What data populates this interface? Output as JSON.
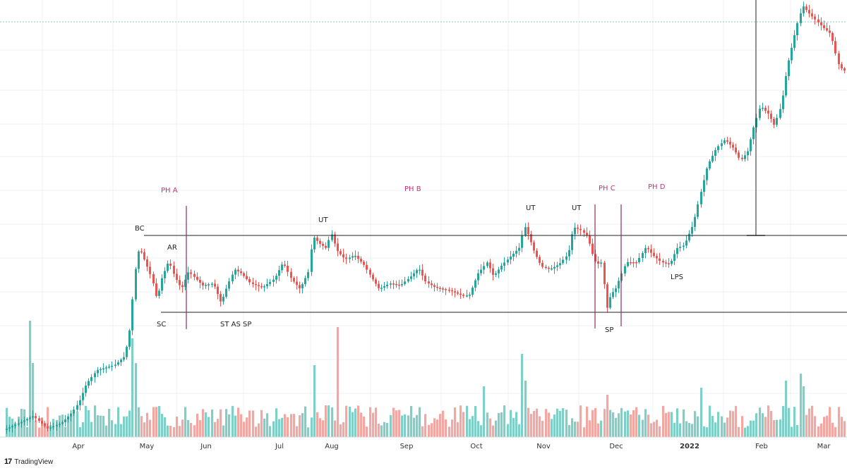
{
  "chart_data": {
    "type": "candlestick",
    "x_axis": {
      "tick_labels": [
        "Apr",
        "May",
        "Jun",
        "Jul",
        "Aug",
        "Sep",
        "Oct",
        "Nov",
        "Dec",
        "2022",
        "Feb",
        "Mar"
      ],
      "bold_labels": [
        "2022"
      ]
    },
    "colors": {
      "up": "#26a69a",
      "down": "#ef5350",
      "up_volume": "#7fcfc6",
      "down_volume": "#f3a7a3",
      "phase_line": "#8e2f5c",
      "phase_text": "#c2357a",
      "grid": "#eef0f3",
      "dotted_level": "#7fc8d6"
    },
    "annotations": [
      "BC",
      "AR",
      "SC",
      "ST AS SP",
      "UT",
      "UT",
      "UT",
      "SP",
      "LPS"
    ],
    "phases": [
      "PH A",
      "PH B",
      "PH C",
      "PH D"
    ],
    "trading_range": {
      "resistance": "horizontal line at top of range",
      "support": "horizontal line at bottom of range"
    }
  },
  "branding": {
    "logo": "17",
    "name": "TradingView"
  }
}
